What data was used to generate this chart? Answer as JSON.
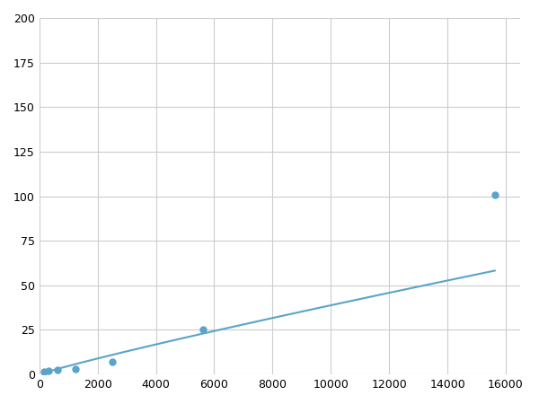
{
  "x": [
    156,
    313,
    625,
    1250,
    2500,
    5625,
    15625
  ],
  "y": [
    1.5,
    2.0,
    2.5,
    3.0,
    7.0,
    25.0,
    101.0
  ],
  "line_color": "#5ba3c9",
  "marker_color": "#5ba3c9",
  "marker_size": 5,
  "xlim": [
    0,
    16500
  ],
  "ylim": [
    0,
    200
  ],
  "xticks": [
    0,
    2000,
    4000,
    6000,
    8000,
    10000,
    12000,
    14000,
    16000
  ],
  "yticks": [
    0,
    25,
    50,
    75,
    100,
    125,
    150,
    175,
    200
  ],
  "grid_color": "#cccccc",
  "background_color": "#ffffff",
  "line_width": 1.5
}
